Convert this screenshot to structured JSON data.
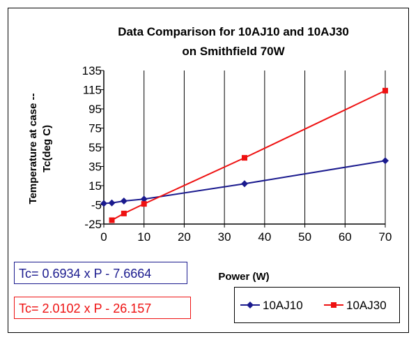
{
  "chart_data": {
    "type": "line",
    "title_lines": [
      "Data Comparison for 10AJ10 and 10AJ30",
      "on Smithfield 70W"
    ],
    "xlabel": "Power (W)",
    "ylabel_lines": [
      "Temperature at case --",
      "Tc(deg C)"
    ],
    "xlim": [
      0,
      70
    ],
    "ylim": [
      -25,
      135
    ],
    "x_ticks": [
      0,
      10,
      20,
      30,
      40,
      50,
      60,
      70
    ],
    "y_ticks": [
      -25,
      -5,
      15,
      35,
      55,
      75,
      95,
      115,
      135
    ],
    "y_tick_labels": [
      "-25",
      "-5",
      "15",
      "35",
      "55",
      "75",
      "95",
      "115",
      "135"
    ],
    "x_grid": true,
    "y_grid": false,
    "legend_position": "bottom-right",
    "series": [
      {
        "name": "10AJ10",
        "color": "#1a1a8e",
        "marker": "diamond",
        "x": [
          0,
          2,
          5,
          10,
          35,
          70
        ],
        "y": [
          -3.5,
          -3,
          -1,
          1,
          17,
          41
        ]
      },
      {
        "name": "10AJ30",
        "color": "#ee1111",
        "marker": "square",
        "x": [
          2,
          5,
          10,
          35,
          70
        ],
        "y": [
          -21,
          -14,
          -4,
          44,
          114
        ]
      }
    ],
    "equations": [
      {
        "text": "Tc= 0.6934 x P - 7.6664",
        "color": "#1a1a8e"
      },
      {
        "text": "Tc= 2.0102 x P - 26.157",
        "color": "#ee1111"
      }
    ]
  }
}
